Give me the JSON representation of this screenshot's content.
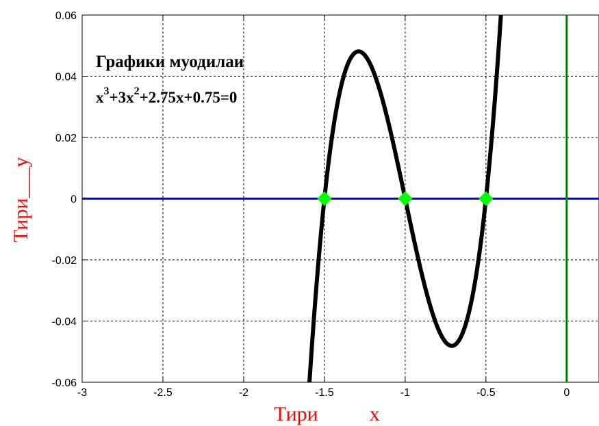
{
  "chart_data": {
    "type": "line",
    "title": "",
    "xlabel": "Тири          x",
    "ylabel": "Тири___y",
    "xlim": [
      -3,
      0.2
    ],
    "ylim": [
      -0.06,
      0.06
    ],
    "grid": true,
    "x_ticks": [
      -3,
      -2.5,
      -2,
      -1.5,
      -1,
      -0.5,
      0
    ],
    "x_tick_labels": [
      "-3",
      "-2.5",
      "-2",
      "-1.5",
      "-1",
      "-0.5",
      "0"
    ],
    "y_ticks": [
      -0.06,
      -0.04,
      -0.02,
      0,
      0.02,
      0.04,
      0.06
    ],
    "y_tick_labels": [
      "-0.06",
      "-0.04",
      "-0.02",
      "0",
      "0.02",
      "0.04",
      "0.06"
    ],
    "annotation": {
      "line1": "Графики муодилаи",
      "eq_a": "x",
      "eq_a_sup": "3",
      "eq_b": "+3x",
      "eq_b_sup": "2",
      "eq_c": "+2.75x+0.75=0"
    },
    "series": [
      {
        "color": "#000000",
        "coefficients": [
          1,
          3,
          2.75,
          0.75
        ],
        "x_range": [
          -1.6,
          -0.4
        ]
      },
      {
        "color": "#0000ff",
        "x": [
          -3,
          0.2
        ],
        "y": [
          0,
          0
        ]
      },
      {
        "color": "#008000",
        "x": [
          0,
          0
        ],
        "y": [
          -0.06,
          0.06
        ]
      }
    ],
    "roots": {
      "color": "#00ff00",
      "x": [
        -1.5,
        -1,
        -0.5
      ],
      "y": [
        0,
        0,
        0
      ]
    }
  }
}
